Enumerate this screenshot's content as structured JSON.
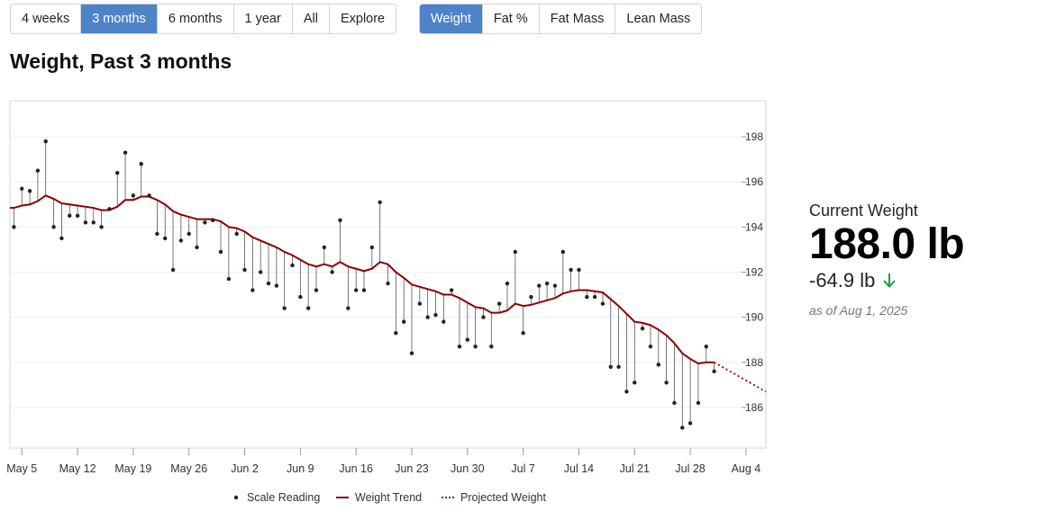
{
  "range_buttons": [
    {
      "label": "4 weeks",
      "active": false
    },
    {
      "label": "3 months",
      "active": true
    },
    {
      "label": "6 months",
      "active": false
    },
    {
      "label": "1 year",
      "active": false
    },
    {
      "label": "All",
      "active": false
    },
    {
      "label": "Explore",
      "active": false
    }
  ],
  "metric_buttons": [
    {
      "label": "Weight",
      "active": true
    },
    {
      "label": "Fat %",
      "active": false
    },
    {
      "label": "Fat Mass",
      "active": false
    },
    {
      "label": "Lean Mass",
      "active": false
    }
  ],
  "page_title": "Weight, Past 3 months",
  "stats": {
    "label": "Current Weight",
    "value": "188.0 lb",
    "change": "-64.9 lb",
    "change_icon": "arrow-down-icon",
    "as_of": "as of Aug 1, 2025"
  },
  "colors": {
    "active_button": "#4f83c8",
    "trend": "#8b0000",
    "scale_dot": "#222222",
    "down_arrow": "#1a9e4a"
  },
  "chart_data": {
    "type": "line",
    "title": "",
    "xlabel": "",
    "ylabel": "",
    "ylim": [
      184.2,
      199.6
    ],
    "y_ticks": [
      186,
      188,
      190,
      192,
      194,
      196,
      198
    ],
    "x_ticks": [
      {
        "label": "May 5",
        "day": 0
      },
      {
        "label": "May 12",
        "day": 7
      },
      {
        "label": "May 19",
        "day": 14
      },
      {
        "label": "May 26",
        "day": 21
      },
      {
        "label": "Jun 2",
        "day": 28
      },
      {
        "label": "Jun 9",
        "day": 35
      },
      {
        "label": "Jun 16",
        "day": 42
      },
      {
        "label": "Jun 23",
        "day": 49
      },
      {
        "label": "Jun 30",
        "day": 56
      },
      {
        "label": "Jul 7",
        "day": 63
      },
      {
        "label": "Jul 14",
        "day": 70
      },
      {
        "label": "Jul 21",
        "day": 77
      },
      {
        "label": "Jul 28",
        "day": 84
      },
      {
        "label": "Aug 4",
        "day": 91
      }
    ],
    "x_range": [
      -1.5,
      93.5
    ],
    "grid": true,
    "legend_position": "bottom",
    "legend": [
      {
        "label": "Scale Reading",
        "kind": "dot"
      },
      {
        "label": "Weight Trend",
        "kind": "line"
      },
      {
        "label": "Projected Weight",
        "kind": "dotted"
      }
    ],
    "scale_readings": [
      [
        -1.0,
        194.0
      ],
      [
        0.0,
        195.7
      ],
      [
        1.0,
        195.6
      ],
      [
        2.0,
        196.5
      ],
      [
        3.0,
        197.8
      ],
      [
        4.0,
        194.0
      ],
      [
        5.0,
        193.5
      ],
      [
        6.0,
        194.5
      ],
      [
        7.0,
        194.5
      ],
      [
        8.0,
        194.2
      ],
      [
        9.0,
        194.2
      ],
      [
        10.0,
        194.0
      ],
      [
        11.0,
        194.8
      ],
      [
        12.0,
        196.4
      ],
      [
        13.0,
        197.3
      ],
      [
        14.0,
        195.4
      ],
      [
        15.0,
        196.8
      ],
      [
        16.0,
        195.4
      ],
      [
        17.0,
        193.7
      ],
      [
        18.0,
        193.5
      ],
      [
        19.0,
        192.1
      ],
      [
        20.0,
        193.4
      ],
      [
        21.0,
        193.7
      ],
      [
        22.0,
        193.1
      ],
      [
        23.0,
        194.2
      ],
      [
        24.0,
        194.3
      ],
      [
        25.0,
        192.9
      ],
      [
        26.0,
        191.7
      ],
      [
        27.0,
        193.7
      ],
      [
        28.0,
        192.1
      ],
      [
        29.0,
        191.2
      ],
      [
        30.0,
        192.0
      ],
      [
        31.0,
        191.5
      ],
      [
        32.0,
        191.4
      ],
      [
        33.0,
        190.4
      ],
      [
        34.0,
        192.3
      ],
      [
        35.0,
        190.9
      ],
      [
        36.0,
        190.4
      ],
      [
        37.0,
        191.2
      ],
      [
        38.0,
        193.1
      ],
      [
        39.0,
        192.0
      ],
      [
        40.0,
        194.3
      ],
      [
        41.0,
        190.4
      ],
      [
        42.0,
        191.2
      ],
      [
        43.0,
        191.2
      ],
      [
        44.0,
        193.1
      ],
      [
        45.0,
        195.1
      ],
      [
        46.0,
        191.5
      ],
      [
        47.0,
        189.3
      ],
      [
        48.0,
        189.8
      ],
      [
        49.0,
        188.4
      ],
      [
        50.0,
        190.6
      ],
      [
        51.0,
        190.0
      ],
      [
        52.0,
        190.1
      ],
      [
        53.0,
        189.8
      ],
      [
        54.0,
        191.2
      ],
      [
        55.0,
        188.7
      ],
      [
        56.0,
        189.0
      ],
      [
        57.0,
        188.7
      ],
      [
        58.0,
        190.0
      ],
      [
        59.0,
        188.7
      ],
      [
        60.0,
        190.6
      ],
      [
        61.0,
        191.5
      ],
      [
        62.0,
        192.9
      ],
      [
        63.0,
        189.3
      ],
      [
        64.0,
        190.9
      ],
      [
        65.0,
        191.4
      ],
      [
        66.0,
        191.5
      ],
      [
        67.0,
        191.4
      ],
      [
        68.0,
        192.9
      ],
      [
        69.0,
        192.1
      ],
      [
        70.0,
        192.1
      ],
      [
        71.0,
        190.9
      ],
      [
        72.0,
        190.9
      ],
      [
        73.0,
        190.6
      ],
      [
        74.0,
        187.8
      ],
      [
        75.0,
        187.8
      ],
      [
        76.0,
        186.7
      ],
      [
        77.0,
        187.1
      ],
      [
        78.0,
        189.5
      ],
      [
        79.0,
        188.7
      ],
      [
        80.0,
        187.9
      ],
      [
        81.0,
        187.1
      ],
      [
        82.0,
        186.2
      ],
      [
        83.0,
        185.1
      ],
      [
        84.0,
        185.3
      ],
      [
        85.0,
        186.2
      ],
      [
        86.0,
        188.7
      ],
      [
        87.0,
        187.6
      ]
    ],
    "trend": [
      [
        -1.5,
        194.85
      ],
      [
        -1.0,
        194.85
      ],
      [
        0.0,
        194.95
      ],
      [
        1.0,
        195.0
      ],
      [
        2.0,
        195.15
      ],
      [
        3.0,
        195.4
      ],
      [
        4.0,
        195.25
      ],
      [
        5.0,
        195.05
      ],
      [
        6.0,
        195.0
      ],
      [
        7.0,
        194.95
      ],
      [
        8.0,
        194.9
      ],
      [
        9.0,
        194.85
      ],
      [
        10.0,
        194.75
      ],
      [
        11.0,
        194.75
      ],
      [
        12.0,
        194.9
      ],
      [
        13.0,
        195.2
      ],
      [
        14.0,
        195.2
      ],
      [
        15.0,
        195.35
      ],
      [
        16.0,
        195.35
      ],
      [
        17.0,
        195.2
      ],
      [
        18.0,
        195.0
      ],
      [
        19.0,
        194.7
      ],
      [
        20.0,
        194.55
      ],
      [
        21.0,
        194.45
      ],
      [
        22.0,
        194.35
      ],
      [
        23.0,
        194.35
      ],
      [
        24.0,
        194.35
      ],
      [
        25.0,
        194.25
      ],
      [
        26.0,
        194.0
      ],
      [
        27.0,
        193.95
      ],
      [
        28.0,
        193.8
      ],
      [
        29.0,
        193.55
      ],
      [
        30.0,
        193.4
      ],
      [
        31.0,
        193.25
      ],
      [
        32.0,
        193.1
      ],
      [
        33.0,
        192.9
      ],
      [
        34.0,
        192.75
      ],
      [
        35.0,
        192.55
      ],
      [
        36.0,
        192.35
      ],
      [
        37.0,
        192.25
      ],
      [
        38.0,
        192.35
      ],
      [
        39.0,
        192.25
      ],
      [
        40.0,
        192.45
      ],
      [
        41.0,
        192.25
      ],
      [
        42.0,
        192.15
      ],
      [
        43.0,
        192.05
      ],
      [
        44.0,
        192.15
      ],
      [
        45.0,
        192.45
      ],
      [
        46.0,
        192.35
      ],
      [
        47.0,
        192.0
      ],
      [
        48.0,
        191.75
      ],
      [
        49.0,
        191.45
      ],
      [
        50.0,
        191.35
      ],
      [
        51.0,
        191.25
      ],
      [
        52.0,
        191.15
      ],
      [
        53.0,
        191.0
      ],
      [
        54.0,
        191.0
      ],
      [
        55.0,
        190.85
      ],
      [
        56.0,
        190.65
      ],
      [
        57.0,
        190.45
      ],
      [
        58.0,
        190.4
      ],
      [
        59.0,
        190.2
      ],
      [
        60.0,
        190.2
      ],
      [
        61.0,
        190.3
      ],
      [
        62.0,
        190.6
      ],
      [
        63.0,
        190.5
      ],
      [
        64.0,
        190.55
      ],
      [
        65.0,
        190.65
      ],
      [
        66.0,
        190.75
      ],
      [
        67.0,
        190.85
      ],
      [
        68.0,
        191.05
      ],
      [
        69.0,
        191.15
      ],
      [
        70.0,
        191.2
      ],
      [
        71.0,
        191.2
      ],
      [
        72.0,
        191.15
      ],
      [
        73.0,
        191.1
      ],
      [
        74.0,
        190.8
      ],
      [
        75.0,
        190.5
      ],
      [
        76.0,
        190.15
      ],
      [
        77.0,
        189.8
      ],
      [
        78.0,
        189.75
      ],
      [
        79.0,
        189.65
      ],
      [
        80.0,
        189.45
      ],
      [
        81.0,
        189.2
      ],
      [
        82.0,
        188.85
      ],
      [
        83.0,
        188.4
      ],
      [
        84.0,
        188.15
      ],
      [
        85.0,
        187.95
      ],
      [
        86.0,
        188.0
      ],
      [
        87.0,
        188.0
      ]
    ],
    "projected": [
      [
        87.0,
        188.0
      ],
      [
        93.5,
        186.7
      ]
    ]
  }
}
